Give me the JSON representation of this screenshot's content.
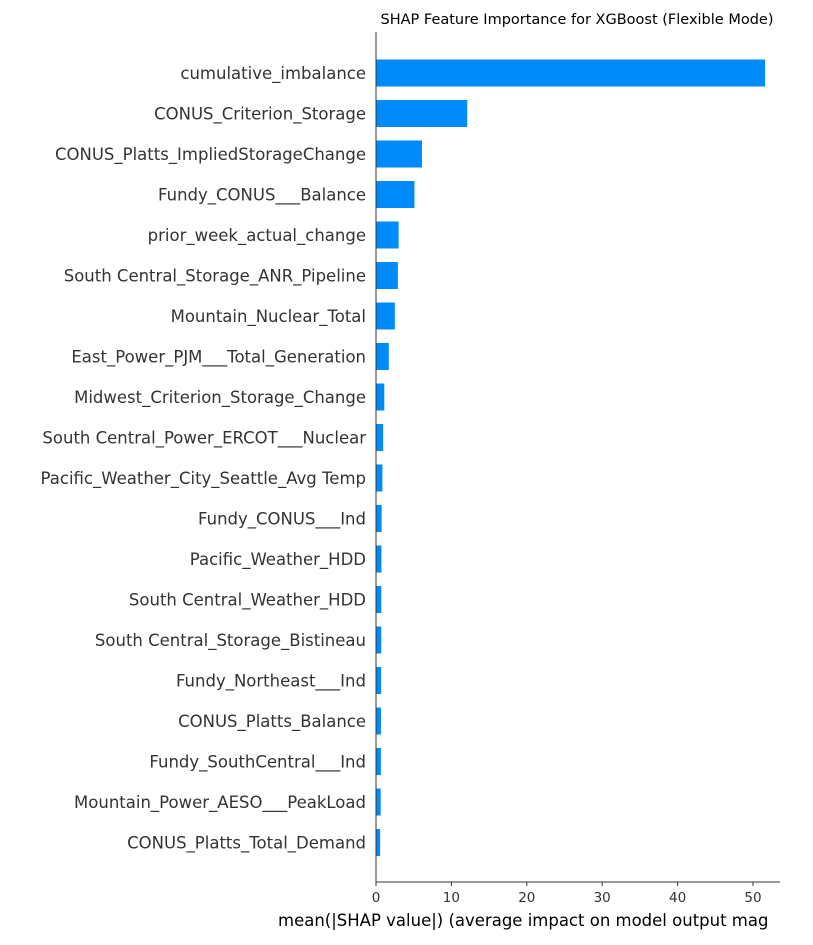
{
  "chart_data": {
    "type": "bar",
    "orientation": "horizontal",
    "title": "SHAP Feature Importance for XGBoost (Flexible Mode)",
    "xlabel": "mean(|SHAP value|) (average impact on model output mag",
    "ylabel": "",
    "xlim": [
      0,
      54
    ],
    "xticks": [
      0,
      10,
      20,
      30,
      40,
      50
    ],
    "grid": false,
    "bar_color": "#008bfb",
    "categories": [
      "cumulative_imbalance",
      "CONUS_Criterion_Storage",
      "CONUS_Platts_ImpliedStorageChange",
      "Fundy_CONUS___Balance",
      "prior_week_actual_change",
      "South Central_Storage_ANR_Pipeline",
      "Mountain_Nuclear_Total",
      "East_Power_PJM___Total_Generation",
      "Midwest_Criterion_Storage_Change",
      "South Central_Power_ERCOT___Nuclear",
      "Pacific_Weather_City_Seattle_Avg Temp",
      "Fundy_CONUS___Ind",
      "Pacific_Weather_HDD",
      "South Central_Weather_HDD",
      "South Central_Storage_Bistineau",
      "Fundy_Northeast___Ind",
      "CONUS_Platts_Balance",
      "Fundy_SouthCentral___Ind",
      "Mountain_Power_AESO___PeakLoad",
      "CONUS_Platts_Total_Demand"
    ],
    "values": [
      51.6,
      12.1,
      6.1,
      5.1,
      3.0,
      2.9,
      2.5,
      1.7,
      1.1,
      0.95,
      0.85,
      0.75,
      0.72,
      0.7,
      0.7,
      0.68,
      0.66,
      0.65,
      0.62,
      0.55
    ]
  }
}
